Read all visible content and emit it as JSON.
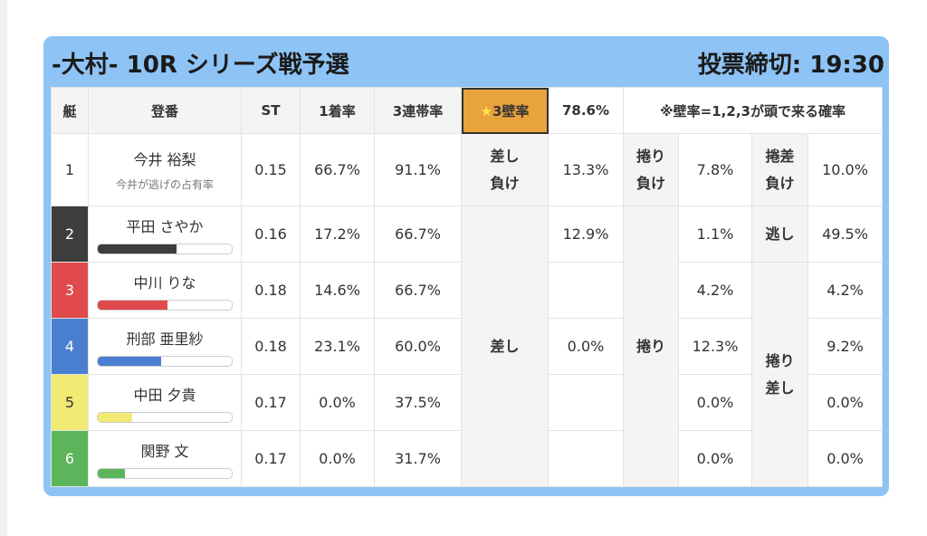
{
  "header": {
    "title": "-大村- 10R シリーズ戦予選",
    "deadline": "投票締切: 19:30"
  },
  "table": {
    "columns": [
      "艇",
      "登番",
      "ST",
      "1着率",
      "3連帯率",
      "3壁率",
      "78.6%",
      "※壁率=1,2,3が頭で来る確率"
    ],
    "star_icon": "★",
    "rows": [
      {
        "boat": "1",
        "name": "今井 裕梨",
        "note": "今井が逃げの占有率",
        "st": "0.15",
        "win": "66.7%",
        "top3": "91.1%"
      },
      {
        "boat": "2",
        "name": "平田 さやか",
        "bar": 59,
        "st": "0.16",
        "win": "17.2%",
        "top3": "66.7%"
      },
      {
        "boat": "3",
        "name": "中川 りな",
        "bar": 52,
        "st": "0.18",
        "win": "14.6%",
        "top3": "66.7%"
      },
      {
        "boat": "4",
        "name": "刑部 亜里紗",
        "bar": 47,
        "st": "0.18",
        "win": "23.1%",
        "top3": "60.0%"
      },
      {
        "boat": "5",
        "name": "中田 夕貴",
        "bar": 26,
        "st": "0.17",
        "win": "0.0%",
        "top3": "37.5%"
      },
      {
        "boat": "6",
        "name": "関野 文",
        "bar": 20,
        "st": "0.17",
        "win": "0.0%",
        "top3": "31.7%"
      }
    ],
    "row1": {
      "sashi_make": [
        "差し",
        "負け"
      ],
      "sashi_make_rate": "13.3%",
      "makuri_make": [
        "捲り",
        "負け"
      ],
      "makuri_make_rate": "7.8%",
      "makurisashi_make": [
        "捲差",
        "負け"
      ],
      "makurisashi_make_rate": "10.0%"
    },
    "sashi": {
      "label": "差し",
      "rates": [
        "12.9%",
        "0.0%"
      ]
    },
    "makuri": {
      "label": "捲り",
      "rates": [
        "1.1%",
        "4.2%",
        "12.3%",
        "0.0%",
        "0.0%"
      ]
    },
    "nige": {
      "label": "逃し",
      "rate": "49.5%"
    },
    "makurisashi": {
      "label": [
        "捲り",
        "差し"
      ],
      "rates": [
        "4.2%",
        "9.2%",
        "0.0%",
        "0.0%"
      ]
    }
  }
}
